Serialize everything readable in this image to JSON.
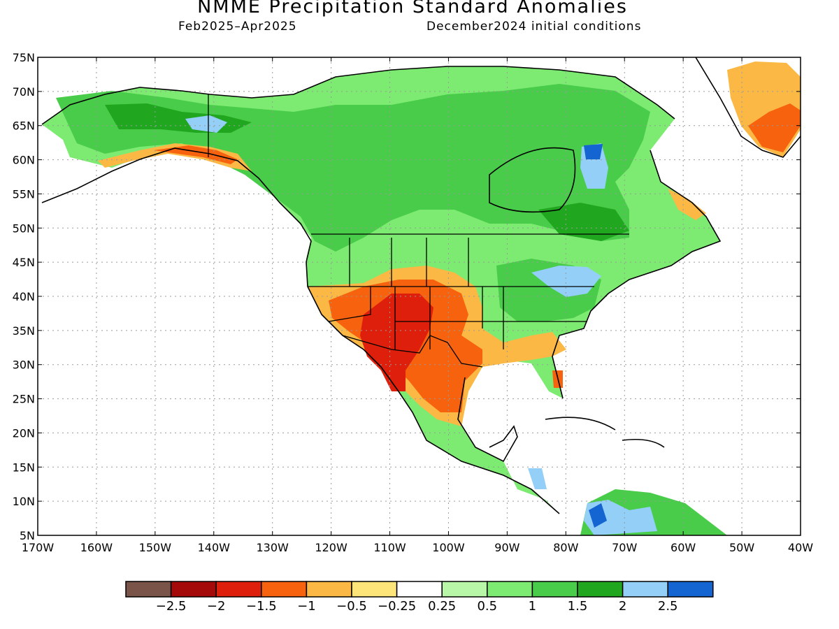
{
  "title": "NMME Precipitation Standard Anomalies",
  "subtitle_left": "Feb2025–Apr2025",
  "subtitle_right": "December2024 initial conditions",
  "lat_labels": [
    "75N",
    "70N",
    "65N",
    "60N",
    "55N",
    "50N",
    "45N",
    "40N",
    "35N",
    "30N",
    "25N",
    "20N",
    "15N",
    "10N",
    "5N"
  ],
  "lon_labels": [
    "170W",
    "160W",
    "150W",
    "140W",
    "130W",
    "120W",
    "110W",
    "100W",
    "90W",
    "80W",
    "70W",
    "60W",
    "50W",
    "40W"
  ],
  "colorbar": {
    "colors": [
      "#7b5449",
      "#a50a0a",
      "#dd1f0c",
      "#f7620f",
      "#fbb844",
      "#fde57a",
      "#ffffff",
      "#b8f7a8",
      "#7deb72",
      "#49cc49",
      "#20a61f",
      "#93cff7",
      "#1464d2"
    ],
    "labels": [
      "−2.5",
      "−2",
      "−1.5",
      "−1",
      "−0.5",
      "−0.25",
      "0.25",
      "0.5",
      "1",
      "1.5",
      "2",
      "2.5"
    ]
  },
  "map_colors": {
    "ocean": "#ffffff",
    "grid": "#9a9a9a",
    "coast": "#000000"
  }
}
